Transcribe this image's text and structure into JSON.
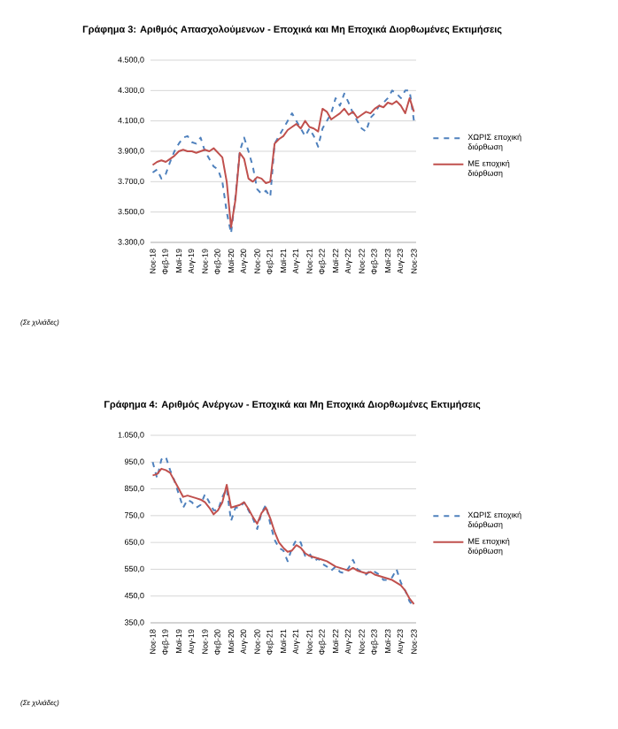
{
  "chart_data": [
    {
      "type": "line",
      "title": "Γράφημα 3: Αριθμός Απασχολούμενων - Εποχικά και Μη Εποχικά Διορθωμένες Εκτιμήσεις",
      "categories": [
        "Νοε-18",
        null,
        null,
        "Φεβ-19",
        null,
        null,
        "Μαϊ-19",
        null,
        null,
        "Αυγ-19",
        null,
        null,
        "Νοε-19",
        null,
        null,
        "Φεβ-20",
        null,
        null,
        "Μαϊ-20",
        null,
        null,
        "Αυγ-20",
        null,
        null,
        "Νοε-20",
        null,
        null,
        "Φεβ-21",
        null,
        null,
        "Μαϊ-21",
        null,
        null,
        "Αυγ-21",
        null,
        null,
        "Νοε-21",
        null,
        null,
        "Φεβ-22",
        null,
        null,
        "Μαϊ-22",
        null,
        null,
        "Αυγ-22",
        null,
        null,
        "Νοε-22",
        null,
        null,
        "Φεβ-23",
        null,
        null,
        "Μαϊ-23",
        null,
        null,
        "Αυγ-23",
        null,
        null,
        "Νοε-23"
      ],
      "series": [
        {
          "name": "ΧΩΡΙΣ εποχική διόρθωση",
          "color": "#4f81bd",
          "line_style": "dashed",
          "values": [
            3760,
            3780,
            3720,
            3750,
            3830,
            3900,
            3950,
            3990,
            4000,
            3960,
            3950,
            3990,
            3900,
            3850,
            3800,
            3780,
            3700,
            3500,
            3360,
            3600,
            3900,
            3990,
            3900,
            3800,
            3650,
            3620,
            3640,
            3600,
            3950,
            4000,
            4050,
            4100,
            4150,
            4100,
            4050,
            4000,
            4050,
            4000,
            3930,
            4050,
            4100,
            4150,
            4250,
            4200,
            4280,
            4220,
            4150,
            4100,
            4050,
            4030,
            4120,
            4150,
            4200,
            4220,
            4250,
            4300,
            4280,
            4250,
            4300,
            4300,
            4100
          ]
        },
        {
          "name": "ΜΕ εποχική διόρθωση",
          "color": "#c0504d",
          "line_style": "solid",
          "values": [
            3810,
            3830,
            3840,
            3830,
            3850,
            3870,
            3900,
            3910,
            3900,
            3900,
            3890,
            3900,
            3910,
            3900,
            3920,
            3890,
            3860,
            3700,
            3400,
            3580,
            3890,
            3850,
            3720,
            3700,
            3730,
            3720,
            3690,
            3700,
            3950,
            3980,
            4000,
            4040,
            4060,
            4080,
            4050,
            4100,
            4060,
            4050,
            4030,
            4180,
            4160,
            4110,
            4130,
            4150,
            4180,
            4140,
            4160,
            4120,
            4140,
            4160,
            4150,
            4180,
            4200,
            4190,
            4220,
            4210,
            4230,
            4200,
            4150,
            4250,
            4160
          ]
        }
      ],
      "ylim": [
        3300,
        4500
      ],
      "yticks": [
        {
          "value": 3300,
          "label": "3.300,0"
        },
        {
          "value": 3500,
          "label": "3.500,0"
        },
        {
          "value": 3700,
          "label": "3.700,0"
        },
        {
          "value": 3900,
          "label": "3.900,0"
        },
        {
          "value": 4100,
          "label": "4.100,0"
        },
        {
          "value": 4300,
          "label": "4.300,0"
        },
        {
          "value": 4500,
          "label": "4.500,0"
        }
      ],
      "grid": "y",
      "legend": "right",
      "annotations": [
        "(Σε χιλιάδες)"
      ]
    },
    {
      "type": "line",
      "title": "Γράφημα 4: Αριθμός Ανέργων - Εποχικά και Μη Εποχικά Διορθωμένες Εκτιμήσεις",
      "categories": [
        "Νοε-18",
        null,
        null,
        "Φεβ-19",
        null,
        null,
        "Μαϊ-19",
        null,
        null,
        "Αυγ-19",
        null,
        null,
        "Νοε-19",
        null,
        null,
        "Φεβ-20",
        null,
        null,
        "Μαϊ-20",
        null,
        null,
        "Αυγ-20",
        null,
        null,
        "Νοε-20",
        null,
        null,
        "Φεβ-21",
        null,
        null,
        "Μαϊ-21",
        null,
        null,
        "Αυγ-21",
        null,
        null,
        "Νοε-21",
        null,
        null,
        "Φεβ-22",
        null,
        null,
        "Μαϊ-22",
        null,
        null,
        "Αυγ-22",
        null,
        null,
        "Νοε-22",
        null,
        null,
        "Φεβ-23",
        null,
        null,
        "Μαϊ-23",
        null,
        null,
        "Αυγ-23",
        null,
        null,
        "Νοε-23"
      ],
      "series": [
        {
          "name": "ΧΩΡΙΣ εποχική διόρθωση",
          "color": "#4f81bd",
          "line_style": "dashed",
          "values": [
            950,
            890,
            960,
            970,
            920,
            880,
            830,
            780,
            810,
            800,
            780,
            790,
            830,
            800,
            770,
            770,
            820,
            850,
            730,
            780,
            780,
            800,
            770,
            740,
            700,
            760,
            790,
            720,
            660,
            630,
            620,
            580,
            630,
            660,
            650,
            600,
            610,
            580,
            590,
            570,
            560,
            545,
            560,
            540,
            535,
            555,
            585,
            550,
            540,
            530,
            545,
            540,
            530,
            510,
            510,
            520,
            550,
            500,
            470,
            430,
            410
          ]
        },
        {
          "name": "ΜΕ εποχική διόρθωση",
          "color": "#c0504d",
          "line_style": "solid",
          "values": [
            900,
            905,
            925,
            920,
            910,
            880,
            850,
            820,
            825,
            820,
            815,
            810,
            800,
            780,
            755,
            770,
            800,
            865,
            780,
            785,
            790,
            800,
            775,
            745,
            720,
            760,
            780,
            740,
            690,
            650,
            630,
            615,
            620,
            640,
            630,
            610,
            600,
            595,
            590,
            585,
            580,
            570,
            560,
            555,
            550,
            545,
            555,
            545,
            540,
            535,
            540,
            530,
            525,
            520,
            515,
            510,
            500,
            490,
            470,
            440,
            420
          ]
        }
      ],
      "ylim": [
        350,
        1050
      ],
      "yticks": [
        {
          "value": 350,
          "label": "350,0"
        },
        {
          "value": 450,
          "label": "450,0"
        },
        {
          "value": 550,
          "label": "550,0"
        },
        {
          "value": 650,
          "label": "650,0"
        },
        {
          "value": 750,
          "label": "750,0"
        },
        {
          "value": 850,
          "label": "850,0"
        },
        {
          "value": 950,
          "label": "950,0"
        },
        {
          "value": 1050,
          "label": "1.050,0"
        }
      ],
      "grid": "y",
      "legend": "right",
      "annotations": [
        "(Σε χιλιάδες)"
      ]
    }
  ]
}
